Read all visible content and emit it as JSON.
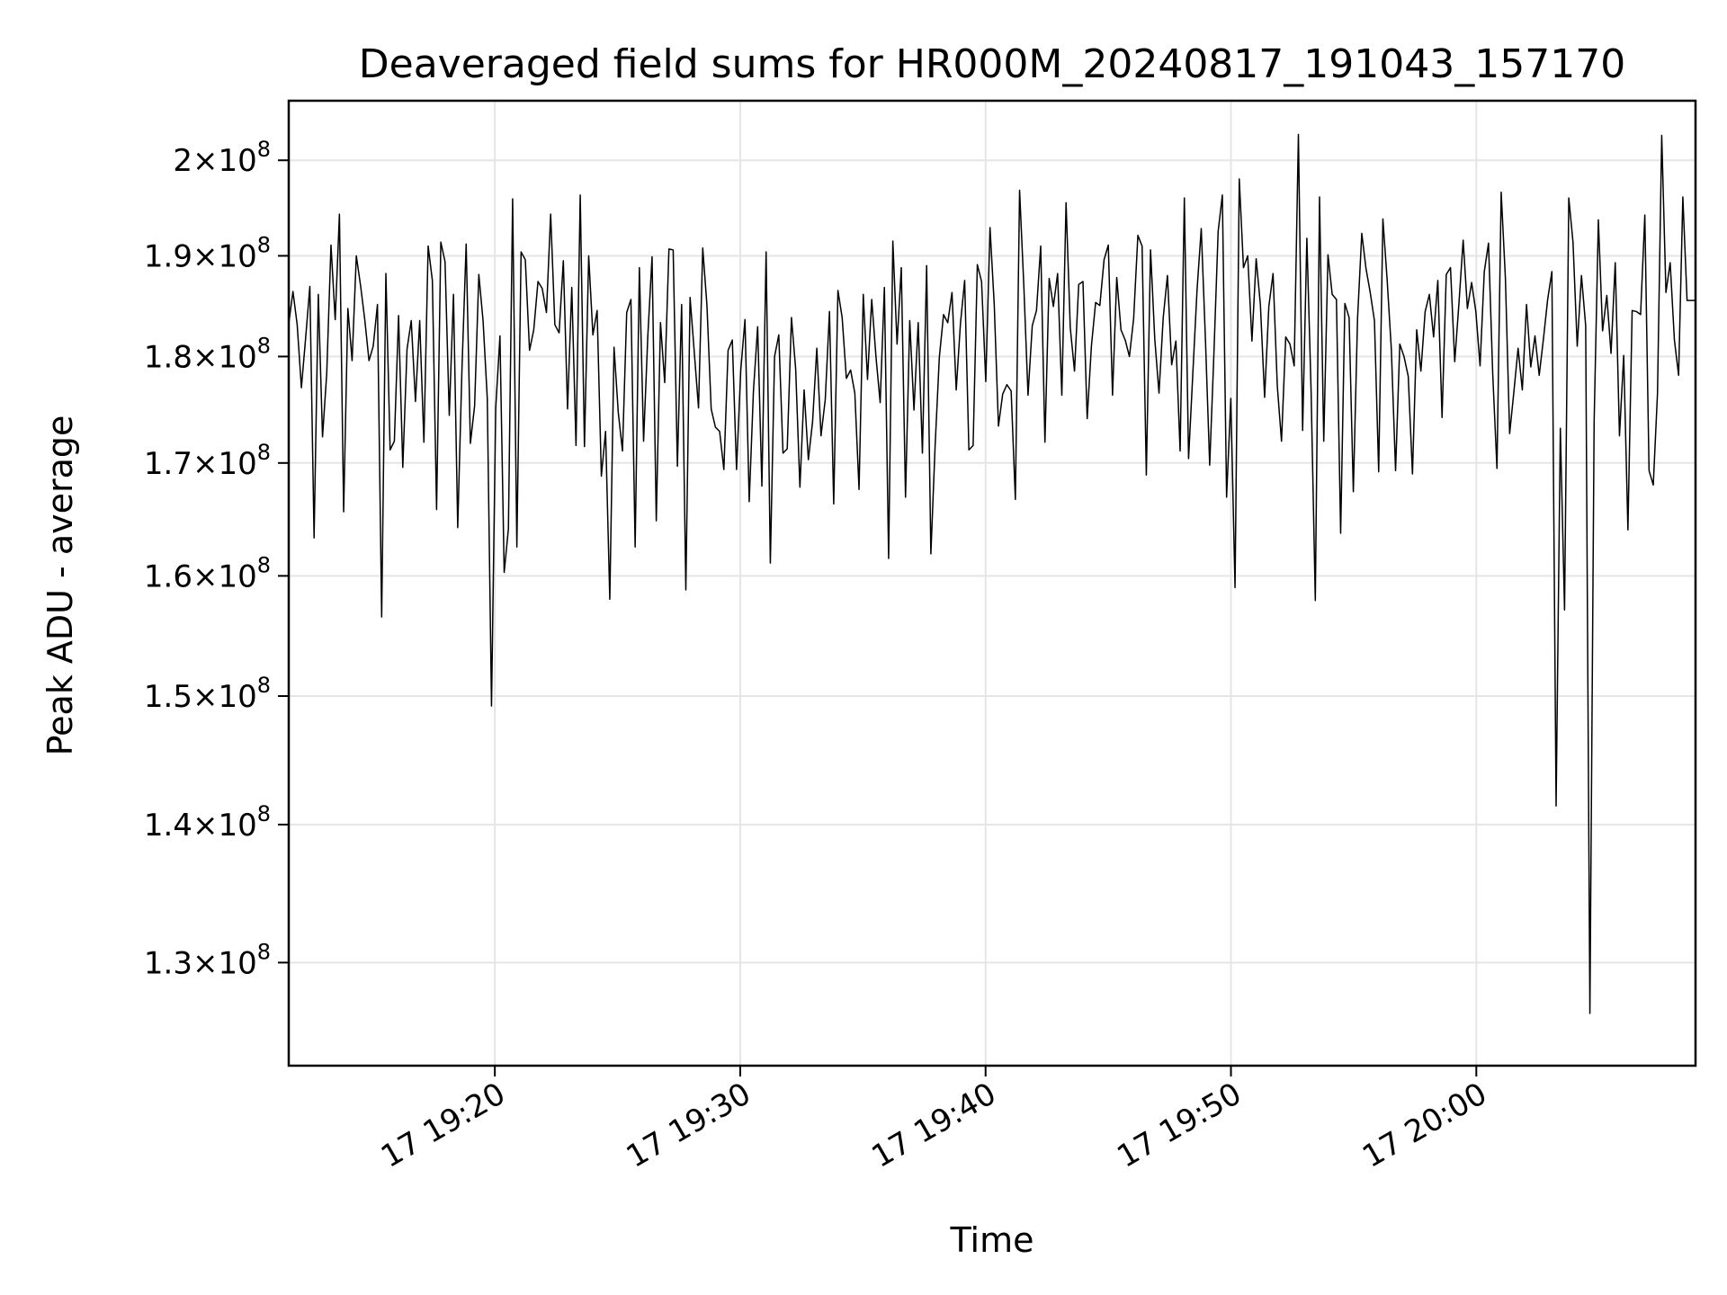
{
  "chart_data": {
    "type": "line",
    "title": "Deaveraged field sums for HR000M_20240817_191043_157170",
    "xlabel": "Time",
    "ylabel": "Peak ADU - average",
    "y_scale": "log",
    "grid": true,
    "colors": {
      "line": "#000000",
      "grid": "#e5e5e5",
      "axes": "#000000",
      "background": "#ffffff"
    },
    "xlim": [
      "2024-08-17T19:11:36",
      "2024-08-17T20:08:56"
    ],
    "ylim": [
      123000000,
      206500000
    ],
    "x_ticks": [
      {
        "value": "2024-08-17T19:20:00",
        "label": "17 19:20"
      },
      {
        "value": "2024-08-17T19:30:00",
        "label": "17 19:30"
      },
      {
        "value": "2024-08-17T19:40:00",
        "label": "17 19:40"
      },
      {
        "value": "2024-08-17T19:50:00",
        "label": "17 19:50"
      },
      {
        "value": "2024-08-17T20:00:00",
        "label": "17 20:00"
      }
    ],
    "y_ticks": [
      {
        "value": 130000000,
        "mantissa": "1.3",
        "exp": "8"
      },
      {
        "value": 140000000,
        "mantissa": "1.4",
        "exp": "8"
      },
      {
        "value": 150000000,
        "mantissa": "1.5",
        "exp": "8"
      },
      {
        "value": 160000000,
        "mantissa": "1.6",
        "exp": "8"
      },
      {
        "value": 170000000,
        "mantissa": "1.7",
        "exp": "8"
      },
      {
        "value": 180000000,
        "mantissa": "1.8",
        "exp": "8"
      },
      {
        "value": 190000000,
        "mantissa": "1.9",
        "exp": "8"
      },
      {
        "value": 200000000,
        "mantissa": "2",
        "exp": "8"
      }
    ],
    "series": [
      {
        "x_start": "2024-08-17T19:11:36",
        "x_end": "2024-08-17T20:08:56",
        "values": [
          183.2,
          186.4,
          183.1,
          177.0,
          181.8,
          186.9,
          163.3,
          186.1,
          172.4,
          178.4,
          191.1,
          183.6,
          194.3,
          165.6,
          184.7,
          179.6,
          190.0,
          187.0,
          183.6,
          179.6,
          181.0,
          185.1,
          156.5,
          188.2,
          171.2,
          172.0,
          184.0,
          169.6,
          180.7,
          183.5,
          175.7,
          183.5,
          171.9,
          191.0,
          187.5,
          165.8,
          191.4,
          189.4,
          174.4,
          186.1,
          164.2,
          178.7,
          191.2,
          171.8,
          175.3,
          188.1,
          183.5,
          176.0,
          149.2,
          175.1,
          182.0,
          160.3,
          164.1,
          195.9,
          162.5,
          190.4,
          189.6,
          180.6,
          182.6,
          187.4,
          186.7,
          184.3,
          194.3,
          183.1,
          182.3,
          189.5,
          175.0,
          186.8,
          171.6,
          196.3,
          171.5,
          190.0,
          182.1,
          184.5,
          168.8,
          172.9,
          158.0,
          180.9,
          174.7,
          171.1,
          184.3,
          185.6,
          162.5,
          188.8,
          172.0,
          182.0,
          189.9,
          164.8,
          183.3,
          177.5,
          190.7,
          190.6,
          169.7,
          185.1,
          158.8,
          185.8,
          180.4,
          175.1,
          190.8,
          185.0,
          175.0,
          173.3,
          172.9,
          169.4,
          180.6,
          181.6,
          169.4,
          178.7,
          183.6,
          166.5,
          176.7,
          182.9,
          167.9,
          190.4,
          161.1,
          180.0,
          182.1,
          170.9,
          171.3,
          183.8,
          178.8,
          167.8,
          176.8,
          170.3,
          173.8,
          180.8,
          172.5,
          175.9,
          184.4,
          166.3,
          186.5,
          183.8,
          177.9,
          178.7,
          176.5,
          167.6,
          186.1,
          177.8,
          185.6,
          180.0,
          175.6,
          186.8,
          161.5,
          191.5,
          181.2,
          188.8,
          166.9,
          183.5,
          174.9,
          183.3,
          170.9,
          189.0,
          161.9,
          171.5,
          179.9,
          184.1,
          183.3,
          186.3,
          176.8,
          183.2,
          187.5,
          171.2,
          171.6,
          189.1,
          187.4,
          177.6,
          192.9,
          185.1,
          173.4,
          176.4,
          177.3,
          176.7,
          166.7,
          196.8,
          187.0,
          176.3,
          183.0,
          184.5,
          191.0,
          171.9,
          187.7,
          184.9,
          188.2,
          176.3,
          195.5,
          182.8,
          178.6,
          187.1,
          187.4,
          174.1,
          181.0,
          185.3,
          185.0,
          189.6,
          191.1,
          176.3,
          187.8,
          182.6,
          181.6,
          180.0,
          183.7,
          192.1,
          191.0,
          168.9,
          190.6,
          181.7,
          176.5,
          183.8,
          188.0,
          179.2,
          181.5,
          171.1,
          196.0,
          170.4,
          178.3,
          186.5,
          192.8,
          181.6,
          169.8,
          180.3,
          192.5,
          196.3,
          166.9,
          176.0,
          159.0,
          198.0,
          188.8,
          190.0,
          181.5,
          189.7,
          185.1,
          176.1,
          184.9,
          188.2,
          177.2,
          172.0,
          181.9,
          181.2,
          179.1,
          202.8,
          173.0,
          191.8,
          176.8,
          157.9,
          196.1,
          172.0,
          190.1,
          186.1,
          185.6,
          163.7,
          185.2,
          183.8,
          167.4,
          183.7,
          192.3,
          188.7,
          186.3,
          183.5,
          169.2,
          193.8,
          187.6,
          180.7,
          169.3,
          181.2,
          180.0,
          178.1,
          169.0,
          182.6,
          178.6,
          184.4,
          186.1,
          181.9,
          187.5,
          174.2,
          188.1,
          188.8,
          179.5,
          185.2,
          191.6,
          184.7,
          187.3,
          184.4,
          179.1,
          188.4,
          191.3,
          178.3,
          169.5,
          196.6,
          187.7,
          172.7,
          176.6,
          180.8,
          176.8,
          185.1,
          179.0,
          182.0,
          178.2,
          181.7,
          185.6,
          188.4,
          141.4,
          173.2,
          157.1,
          196.0,
          191.4,
          181.0,
          188.0,
          183.0,
          126.5,
          173.8,
          193.7,
          182.5,
          186.0,
          180.3,
          189.3,
          172.5,
          180.1,
          164.0,
          184.5,
          184.4,
          184.1,
          194.2,
          169.3,
          168.0,
          176.5,
          202.7,
          186.3,
          189.3,
          181.6,
          178.2,
          196.1,
          185.5,
          185.5,
          185.5
        ]
      }
    ]
  }
}
